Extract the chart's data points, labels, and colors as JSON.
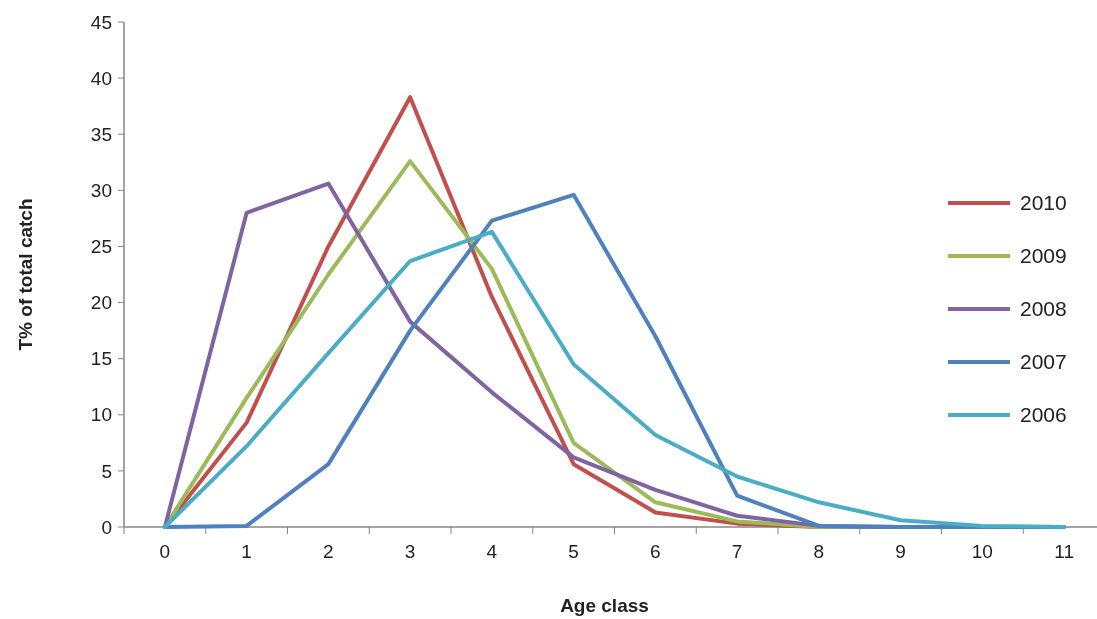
{
  "chart_data": {
    "type": "line",
    "xlabel": "Age class",
    "ylabel": "T% of total catch",
    "categories": [
      "0",
      "1",
      "2",
      "3",
      "4",
      "5",
      "6",
      "7",
      "8",
      "9",
      "10",
      "11"
    ],
    "series": [
      {
        "name": "2010",
        "color": "#c0504d",
        "values": [
          0,
          9.3,
          25,
          38.3,
          20.5,
          5.6,
          1.3,
          0.3,
          0,
          0,
          null,
          null
        ]
      },
      {
        "name": "2009",
        "color": "#9bbb59",
        "values": [
          0,
          11.5,
          22.5,
          32.6,
          23,
          7.5,
          2.2,
          0.5,
          0,
          0,
          null,
          null
        ]
      },
      {
        "name": "2008",
        "color": "#8064a2",
        "values": [
          0,
          28,
          30.6,
          18.3,
          12,
          6.2,
          3.3,
          1,
          0.1,
          0,
          0,
          0
        ]
      },
      {
        "name": "2007",
        "color": "#4f81bd",
        "values": [
          0,
          0.1,
          5.6,
          17.5,
          27.3,
          29.6,
          17,
          2.8,
          0.1,
          0,
          0,
          0
        ]
      },
      {
        "name": "2006",
        "color": "#4bacc6",
        "values": [
          0,
          7.2,
          15.5,
          23.7,
          26.3,
          14.5,
          8.2,
          4.5,
          2.2,
          0.6,
          0.1,
          0
        ]
      }
    ],
    "ylim": [
      0,
      45
    ],
    "yticks": [
      0,
      5,
      10,
      15,
      20,
      25,
      30,
      35,
      40,
      45
    ],
    "legend": "right",
    "grid": false
  }
}
